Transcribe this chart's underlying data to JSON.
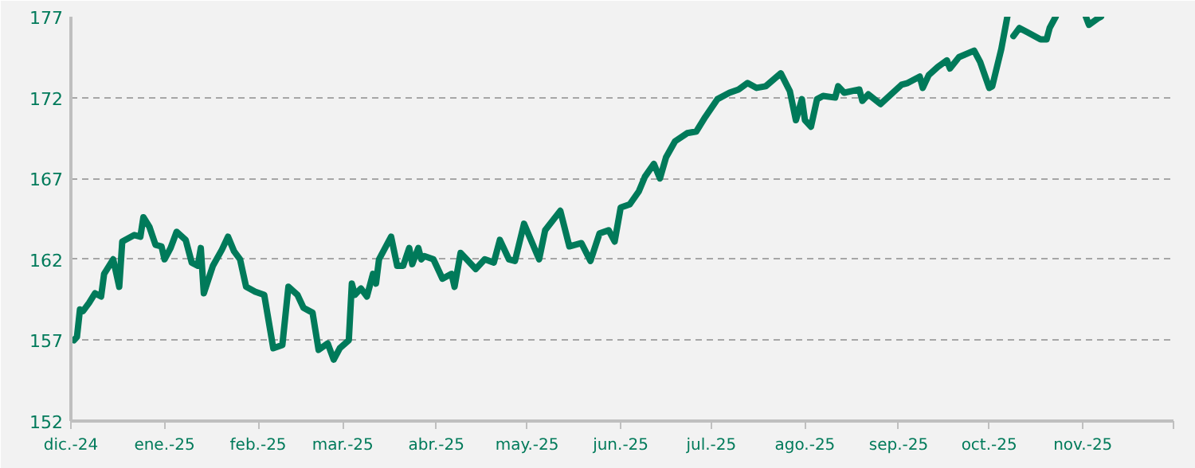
{
  "chart_data": {
    "type": "line",
    "line_style": "solid",
    "marker": "none",
    "grid": "y",
    "x": [
      "2024-12-02",
      "2024-12-03",
      "2024-12-04",
      "2024-12-05",
      "2024-12-07",
      "2024-12-09",
      "2024-12-11",
      "2024-12-12",
      "2024-12-15",
      "2024-12-17",
      "2024-12-18",
      "2024-12-22",
      "2024-12-24",
      "2024-12-25",
      "2024-12-27",
      "2024-12-29",
      "2024-12-31",
      "2025-01-01",
      "2025-01-03",
      "2025-01-05",
      "2025-01-08",
      "2025-01-10",
      "2025-01-12",
      "2025-01-13",
      "2025-01-14",
      "2025-01-17",
      "2025-01-20",
      "2025-01-22",
      "2025-01-24",
      "2025-01-26",
      "2025-01-28",
      "2025-01-31",
      "2025-02-03",
      "2025-02-06",
      "2025-02-09",
      "2025-02-11",
      "2025-02-14",
      "2025-02-16",
      "2025-02-19",
      "2025-02-21",
      "2025-02-24",
      "2025-02-26",
      "2025-02-28",
      "2025-03-03",
      "2025-03-04",
      "2025-03-05",
      "2025-03-07",
      "2025-03-09",
      "2025-03-11",
      "2025-03-12",
      "2025-03-13",
      "2025-03-15",
      "2025-03-17",
      "2025-03-19",
      "2025-03-21",
      "2025-03-23",
      "2025-03-24",
      "2025-03-26",
      "2025-03-27",
      "2025-03-28",
      "2025-03-31",
      "2025-04-02",
      "2025-04-03",
      "2025-04-06",
      "2025-04-07",
      "2025-04-09",
      "2025-04-11",
      "2025-04-14",
      "2025-04-17",
      "2025-04-20",
      "2025-04-22",
      "2025-04-25",
      "2025-04-27",
      "2025-04-30",
      "2025-05-05",
      "2025-05-07",
      "2025-05-12",
      "2025-05-15",
      "2025-05-19",
      "2025-05-22",
      "2025-05-25",
      "2025-05-28",
      "2025-05-30",
      "2025-06-01",
      "2025-06-04",
      "2025-06-07",
      "2025-06-09",
      "2025-06-12",
      "2025-06-14",
      "2025-06-16",
      "2025-06-19",
      "2025-06-23",
      "2025-06-26",
      "2025-06-29",
      "2025-07-03",
      "2025-07-07",
      "2025-07-10",
      "2025-07-13",
      "2025-07-16",
      "2025-07-19",
      "2025-07-24",
      "2025-07-27",
      "2025-07-29",
      "2025-07-31",
      "2025-08-01",
      "2025-08-03",
      "2025-08-05",
      "2025-08-07",
      "2025-08-11",
      "2025-08-12",
      "2025-08-14",
      "2025-08-19",
      "2025-08-20",
      "2025-08-22",
      "2025-08-26",
      "2025-09-02",
      "2025-09-04",
      "2025-09-08",
      "2025-09-09",
      "2025-09-11",
      "2025-09-14",
      "2025-09-17",
      "2025-09-18",
      "2025-09-21",
      "2025-09-26",
      "2025-09-28",
      "2025-10-01",
      "2025-10-02",
      "2025-10-05",
      "2025-10-07",
      "2025-10-08",
      "2025-10-09",
      "2025-10-11",
      "2025-10-14",
      "2025-10-18",
      "2025-10-20",
      "2025-10-21",
      "2025-10-23",
      "2025-10-28",
      "2025-11-02",
      "2025-11-03",
      "2025-11-06",
      "2025-11-07"
    ],
    "series": [
      {
        "color": "#007a5a",
        "values": [
          157.0,
          157.2,
          158.9,
          158.8,
          159.3,
          159.9,
          159.7,
          161.1,
          162.0,
          160.3,
          163.1,
          163.5,
          163.4,
          164.6,
          164.0,
          162.9,
          162.8,
          162.0,
          162.7,
          163.7,
          163.2,
          161.8,
          161.6,
          162.7,
          159.9,
          161.6,
          162.6,
          163.4,
          162.5,
          162.0,
          160.3,
          160.0,
          159.8,
          156.5,
          156.7,
          160.3,
          159.8,
          159.0,
          158.7,
          156.4,
          156.8,
          155.8,
          156.5,
          157.0,
          160.5,
          159.8,
          160.2,
          159.7,
          161.1,
          160.5,
          162.0,
          162.7,
          163.4,
          161.6,
          161.6,
          162.7,
          161.7,
          162.7,
          162.0,
          162.2,
          162.0,
          161.2,
          160.8,
          161.1,
          160.3,
          162.4,
          162.0,
          161.4,
          162.0,
          161.8,
          163.2,
          162.0,
          161.9,
          164.2,
          162.0,
          163.8,
          165.0,
          162.8,
          163.0,
          161.9,
          163.6,
          163.8,
          163.1,
          165.2,
          165.4,
          166.2,
          167.1,
          167.9,
          167.0,
          168.3,
          169.3,
          169.8,
          169.9,
          170.8,
          171.9,
          172.3,
          172.5,
          172.9,
          172.6,
          172.7,
          173.5,
          172.4,
          170.6,
          171.9,
          170.6,
          170.2,
          171.9,
          172.1,
          172.0,
          172.7,
          172.3,
          172.5,
          171.8,
          172.2,
          171.6,
          172.8,
          172.9,
          173.3,
          172.6,
          173.4,
          173.9,
          174.3,
          173.8,
          174.5,
          174.9,
          174.2,
          172.6,
          172.7,
          175.0,
          177.0,
          null,
          175.8,
          176.3,
          176.0,
          175.6,
          175.6,
          176.3,
          177.0,
          null,
          177.0,
          176.5,
          176.9,
          177.0
        ]
      }
    ],
    "xlim": [
      "2024-12-01",
      "2025-12-01"
    ],
    "xticks": [
      {
        "value": "2024-12-01",
        "label": "dic.-24"
      },
      {
        "value": "2025-01-01",
        "label": "ene.-25"
      },
      {
        "value": "2025-02-01",
        "label": "feb.-25"
      },
      {
        "value": "2025-03-01",
        "label": "mar.-25"
      },
      {
        "value": "2025-04-01",
        "label": "abr.-25"
      },
      {
        "value": "2025-05-01",
        "label": "may.-25"
      },
      {
        "value": "2025-06-01",
        "label": "jun.-25"
      },
      {
        "value": "2025-07-01",
        "label": "jul.-25"
      },
      {
        "value": "2025-08-01",
        "label": "ago.-25"
      },
      {
        "value": "2025-09-01",
        "label": "sep.-25"
      },
      {
        "value": "2025-10-01",
        "label": "oct.-25"
      },
      {
        "value": "2025-11-01",
        "label": "nov.-25"
      },
      {
        "value": "2025-12-01",
        "label": null
      }
    ],
    "ylim": [
      152,
      177
    ],
    "yticks": [
      152,
      157,
      162,
      167,
      172,
      177
    ]
  }
}
